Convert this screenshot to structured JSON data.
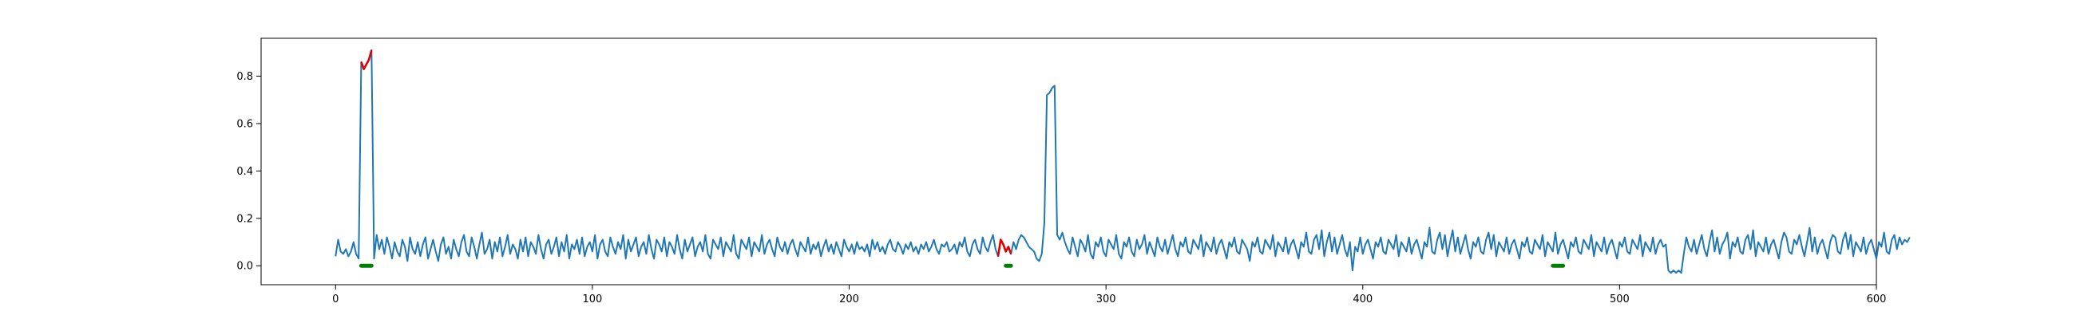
{
  "chart_data": {
    "type": "line",
    "title": "",
    "xlabel": "",
    "ylabel": "",
    "xlim": [
      -29,
      600
    ],
    "ylim": [
      -0.08,
      0.96
    ],
    "xticks": [
      0,
      100,
      200,
      300,
      400,
      500,
      600
    ],
    "yticks": [
      0.0,
      0.2,
      0.4,
      0.6,
      0.8
    ],
    "xtick_labels": [
      "0",
      "100",
      "200",
      "300",
      "400",
      "500",
      "600"
    ],
    "ytick_labels": [
      "0.0",
      "0.2",
      "0.4",
      "0.6",
      "0.8"
    ],
    "grid": false,
    "colors": {
      "series": "#1f77b4",
      "anomaly": "#e00000",
      "markers": "#008000"
    },
    "series": [
      {
        "values": [
          0.04,
          0.11,
          0.06,
          0.05,
          0.07,
          0.04,
          0.06,
          0.1,
          0.05,
          0.03,
          0.86,
          0.83,
          0.85,
          0.87,
          0.91,
          0.03,
          0.13,
          0.07,
          0.11,
          0.05,
          0.12,
          0.08,
          0.03,
          0.1,
          0.06,
          0.04,
          0.11,
          0.08,
          0.02,
          0.12,
          0.07,
          0.05,
          0.1,
          0.04,
          0.09,
          0.12,
          0.03,
          0.07,
          0.11,
          0.06,
          0.02,
          0.09,
          0.12,
          0.05,
          0.08,
          0.03,
          0.11,
          0.07,
          0.04,
          0.1,
          0.13,
          0.06,
          0.04,
          0.12,
          0.08,
          0.03,
          0.09,
          0.14,
          0.05,
          0.07,
          0.11,
          0.03,
          0.1,
          0.06,
          0.12,
          0.04,
          0.08,
          0.13,
          0.05,
          0.09,
          0.07,
          0.03,
          0.11,
          0.06,
          0.12,
          0.04,
          0.1,
          0.08,
          0.05,
          0.13,
          0.07,
          0.03,
          0.09,
          0.11,
          0.05,
          0.08,
          0.12,
          0.04,
          0.1,
          0.06,
          0.13,
          0.03,
          0.09,
          0.07,
          0.11,
          0.05,
          0.12,
          0.04,
          0.08,
          0.1,
          0.06,
          0.13,
          0.03,
          0.09,
          0.11,
          0.06,
          0.04,
          0.12,
          0.08,
          0.05,
          0.1,
          0.07,
          0.13,
          0.03,
          0.11,
          0.06,
          0.09,
          0.12,
          0.04,
          0.08,
          0.1,
          0.05,
          0.13,
          0.07,
          0.03,
          0.11,
          0.09,
          0.06,
          0.12,
          0.04,
          0.1,
          0.08,
          0.05,
          0.13,
          0.07,
          0.03,
          0.11,
          0.06,
          0.09,
          0.12,
          0.04,
          0.08,
          0.1,
          0.06,
          0.13,
          0.05,
          0.03,
          0.11,
          0.09,
          0.07,
          0.12,
          0.04,
          0.1,
          0.08,
          0.06,
          0.13,
          0.05,
          0.03,
          0.11,
          0.09,
          0.07,
          0.12,
          0.04,
          0.1,
          0.08,
          0.06,
          0.13,
          0.05,
          0.09,
          0.11,
          0.07,
          0.04,
          0.12,
          0.08,
          0.06,
          0.1,
          0.05,
          0.09,
          0.11,
          0.07,
          0.04,
          0.1,
          0.08,
          0.06,
          0.12,
          0.05,
          0.09,
          0.07,
          0.1,
          0.04,
          0.08,
          0.11,
          0.06,
          0.09,
          0.05,
          0.1,
          0.07,
          0.04,
          0.11,
          0.08,
          0.06,
          0.09,
          0.05,
          0.1,
          0.07,
          0.08,
          0.06,
          0.09,
          0.04,
          0.11,
          0.07,
          0.1,
          0.06,
          0.08,
          0.05,
          0.09,
          0.11,
          0.07,
          0.06,
          0.1,
          0.08,
          0.05,
          0.09,
          0.07,
          0.1,
          0.06,
          0.08,
          0.05,
          0.09,
          0.07,
          0.1,
          0.06,
          0.08,
          0.11,
          0.07,
          0.05,
          0.09,
          0.08,
          0.1,
          0.06,
          0.07,
          0.09,
          0.05,
          0.1,
          0.08,
          0.12,
          0.06,
          0.04,
          0.09,
          0.11,
          0.07,
          0.05,
          0.12,
          0.08,
          0.06,
          0.1,
          0.13,
          0.07,
          0.04,
          0.11,
          0.09,
          0.06,
          0.08,
          0.05,
          0.1,
          0.07,
          0.11,
          0.13,
          0.12,
          0.1,
          0.08,
          0.07,
          0.06,
          0.03,
          0.02,
          0.05,
          0.18,
          0.72,
          0.73,
          0.75,
          0.76,
          0.13,
          0.11,
          0.14,
          0.1,
          0.07,
          0.05,
          0.12,
          0.08,
          0.04,
          0.11,
          0.09,
          0.06,
          0.13,
          0.05,
          0.03,
          0.1,
          0.08,
          0.12,
          0.06,
          0.04,
          0.11,
          0.09,
          0.07,
          0.13,
          0.05,
          0.03,
          0.1,
          0.08,
          0.12,
          0.06,
          0.04,
          0.11,
          0.07,
          0.09,
          0.13,
          0.05,
          0.1,
          0.07,
          0.04,
          0.12,
          0.08,
          0.06,
          0.11,
          0.05,
          0.09,
          0.13,
          0.07,
          0.04,
          0.1,
          0.08,
          0.12,
          0.06,
          0.05,
          0.11,
          0.09,
          0.07,
          0.13,
          0.04,
          0.1,
          0.08,
          0.06,
          0.12,
          0.05,
          0.09,
          0.11,
          0.07,
          0.03,
          0.1,
          0.08,
          0.12,
          0.06,
          0.05,
          0.11,
          0.09,
          0.07,
          0.02,
          0.1,
          0.08,
          0.12,
          0.06,
          0.05,
          0.11,
          0.09,
          0.07,
          0.13,
          0.04,
          0.1,
          0.08,
          0.06,
          0.12,
          0.05,
          0.09,
          0.11,
          0.07,
          0.03,
          0.1,
          0.08,
          0.14,
          0.06,
          0.05,
          0.11,
          0.13,
          0.07,
          0.15,
          0.04,
          0.1,
          0.14,
          0.06,
          0.12,
          0.05,
          0.09,
          0.13,
          0.07,
          0.04,
          0.1,
          -0.02,
          0.08,
          0.06,
          0.12,
          0.05,
          0.09,
          0.11,
          0.07,
          0.03,
          0.1,
          0.08,
          0.12,
          0.06,
          0.05,
          0.11,
          0.09,
          0.07,
          0.13,
          0.04,
          0.1,
          0.08,
          0.06,
          0.12,
          0.05,
          0.09,
          0.11,
          0.07,
          0.03,
          0.1,
          0.08,
          0.16,
          0.06,
          0.05,
          0.11,
          0.14,
          0.07,
          0.13,
          0.04,
          0.1,
          0.15,
          0.06,
          0.12,
          0.05,
          0.09,
          0.13,
          0.07,
          0.03,
          0.1,
          0.08,
          0.12,
          0.06,
          0.05,
          0.11,
          0.14,
          0.07,
          0.13,
          0.04,
          0.1,
          0.08,
          0.06,
          0.12,
          0.05,
          0.09,
          0.11,
          0.07,
          0.03,
          0.1,
          0.08,
          0.12,
          0.06,
          0.05,
          0.11,
          0.09,
          0.07,
          0.13,
          0.04,
          0.1,
          0.08,
          0.06,
          0.14,
          0.05,
          0.09,
          0.11,
          0.07,
          0.03,
          0.1,
          0.08,
          0.12,
          0.06,
          0.05,
          0.11,
          0.09,
          0.07,
          0.13,
          0.04,
          0.1,
          0.08,
          0.06,
          0.12,
          0.05,
          0.09,
          0.11,
          0.07,
          0.03,
          0.1,
          0.08,
          0.12,
          0.06,
          0.05,
          0.11,
          0.09,
          0.07,
          0.13,
          0.04,
          0.1,
          0.08,
          0.06,
          0.12,
          0.05,
          0.09,
          0.11,
          0.08,
          0.09,
          -0.02,
          -0.03,
          -0.02,
          -0.03,
          -0.02,
          -0.03,
          0.05,
          0.12,
          0.08,
          0.06,
          0.11,
          0.05,
          0.09,
          0.13,
          0.07,
          0.04,
          0.1,
          0.15,
          0.06,
          0.12,
          0.05,
          0.09,
          0.11,
          0.14,
          0.03,
          0.1,
          0.08,
          0.12,
          0.06,
          0.05,
          0.11,
          0.13,
          0.07,
          0.15,
          0.04,
          0.1,
          0.08,
          0.06,
          0.12,
          0.05,
          0.09,
          0.11,
          0.07,
          0.03,
          0.1,
          0.14,
          0.12,
          0.06,
          0.05,
          0.11,
          0.09,
          0.13,
          0.08,
          0.04,
          0.1,
          0.16,
          0.06,
          0.12,
          0.05,
          0.09,
          0.11,
          0.07,
          0.03,
          0.1,
          0.13,
          0.12,
          0.06,
          0.05,
          0.11,
          0.14,
          0.07,
          0.13,
          0.04,
          0.1,
          0.08,
          0.06,
          0.12,
          0.05,
          0.09,
          0.11,
          0.07,
          0.03,
          0.1,
          0.08,
          0.14,
          0.06,
          0.05,
          0.11,
          0.13,
          0.07,
          0.12,
          0.09,
          0.11,
          0.1,
          0.12
        ]
      }
    ],
    "anomaly_ranges": [
      [
        10,
        14
      ],
      [
        258,
        263
      ]
    ],
    "label_markers": [
      [
        10,
        14
      ],
      [
        261,
        263
      ],
      [
        474,
        478
      ]
    ]
  }
}
